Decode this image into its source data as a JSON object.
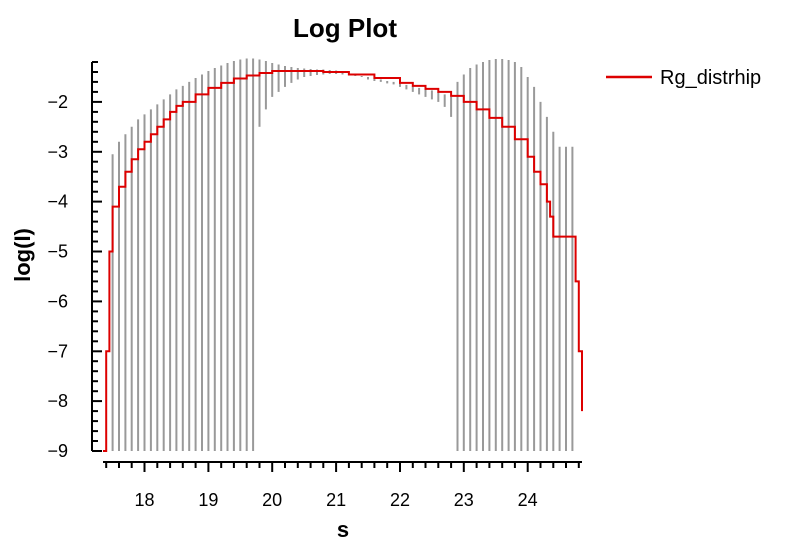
{
  "chart_data": {
    "type": "line",
    "title": "Log Plot",
    "xlabel": "s",
    "ylabel": "log(I)",
    "xlim": [
      17.35,
      24.85
    ],
    "ylim": [
      -9,
      -1.2
    ],
    "xticks": [
      18,
      19,
      20,
      21,
      22,
      23,
      24
    ],
    "xtick_labels": [
      "18",
      "19",
      "20",
      "21",
      "22",
      "23",
      "24"
    ],
    "yticks": [
      -9,
      -8,
      -7,
      -6,
      -5,
      -4,
      -3,
      -2
    ],
    "ytick_labels": [
      "−9",
      "−8",
      "−7",
      "−6",
      "−5",
      "−4",
      "−3",
      "−2"
    ],
    "grid": false,
    "legend_position": "top-right",
    "series": [
      {
        "name": "Rg_distrhip",
        "color": "#dd0000",
        "x": [
          17.35,
          17.4,
          17.45,
          17.5,
          17.6,
          17.7,
          17.8,
          17.9,
          18.0,
          18.1,
          18.2,
          18.3,
          18.4,
          18.5,
          18.6,
          18.8,
          19.0,
          19.2,
          19.4,
          19.6,
          19.8,
          20.0,
          20.4,
          20.8,
          21.2,
          21.6,
          22.0,
          22.2,
          22.4,
          22.6,
          22.8,
          23.0,
          23.2,
          23.4,
          23.6,
          23.8,
          24.0,
          24.1,
          24.2,
          24.3,
          24.35,
          24.4,
          24.5,
          24.6,
          24.7,
          24.75,
          24.8,
          24.85
        ],
        "y": [
          -9.0,
          -7.0,
          -5.0,
          -4.1,
          -3.7,
          -3.4,
          -3.15,
          -2.95,
          -2.8,
          -2.65,
          -2.5,
          -2.35,
          -2.2,
          -2.08,
          -2.0,
          -1.85,
          -1.72,
          -1.62,
          -1.53,
          -1.47,
          -1.42,
          -1.38,
          -1.38,
          -1.4,
          -1.45,
          -1.52,
          -1.62,
          -1.68,
          -1.74,
          -1.8,
          -1.88,
          -2.0,
          -2.15,
          -2.32,
          -2.5,
          -2.75,
          -3.1,
          -3.4,
          -3.65,
          -4.0,
          -4.3,
          -4.7,
          -4.7,
          -4.7,
          -4.7,
          -5.6,
          -7.0,
          -8.2
        ]
      }
    ],
    "error_bars": {
      "color": "#999999",
      "x": [
        17.5,
        17.6,
        17.7,
        17.8,
        17.9,
        18.0,
        18.1,
        18.2,
        18.3,
        18.4,
        18.5,
        18.6,
        18.7,
        18.8,
        18.9,
        19.0,
        19.1,
        19.2,
        19.3,
        19.4,
        19.5,
        19.6,
        19.7,
        19.8,
        19.9,
        20.0,
        20.1,
        20.2,
        20.3,
        20.4,
        20.5,
        20.6,
        20.7,
        20.8,
        20.9,
        21.0,
        21.1,
        21.2,
        21.3,
        21.4,
        21.5,
        21.6,
        21.7,
        21.8,
        21.9,
        22.0,
        22.1,
        22.2,
        22.3,
        22.4,
        22.5,
        22.6,
        22.7,
        22.8,
        22.9,
        23.0,
        23.1,
        23.2,
        23.3,
        23.4,
        23.5,
        23.6,
        23.7,
        23.8,
        23.9,
        24.0,
        24.1,
        24.2,
        24.3,
        24.4,
        24.5,
        24.6,
        24.7
      ],
      "upper": [
        -3.05,
        -2.8,
        -2.65,
        -2.5,
        -2.35,
        -2.25,
        -2.15,
        -2.05,
        -1.95,
        -1.85,
        -1.75,
        -1.68,
        -1.6,
        -1.52,
        -1.45,
        -1.38,
        -1.32,
        -1.27,
        -1.22,
        -1.18,
        -1.15,
        -1.13,
        -1.13,
        -1.15,
        -1.18,
        -1.22,
        -1.25,
        -1.28,
        -1.3,
        -1.32,
        -1.33,
        -1.34,
        -1.35,
        -1.35,
        -1.36,
        -1.37,
        -1.4,
        -1.43,
        -1.45,
        -1.48,
        -1.5,
        -1.53,
        -1.55,
        -1.58,
        -1.6,
        -1.63,
        -1.66,
        -1.69,
        -1.72,
        -1.75,
        -1.77,
        -1.8,
        -1.85,
        -1.9,
        -1.6,
        -1.45,
        -1.32,
        -1.25,
        -1.2,
        -1.16,
        -1.14,
        -1.14,
        -1.16,
        -1.2,
        -1.3,
        -1.5,
        -1.7,
        -2.0,
        -2.3,
        -2.6,
        -2.9,
        -2.9,
        -2.9
      ],
      "lower": [
        -9.0,
        -9.0,
        -9.0,
        -9.0,
        -9.0,
        -9.0,
        -9.0,
        -9.0,
        -9.0,
        -9.0,
        -9.0,
        -9.0,
        -9.0,
        -9.0,
        -9.0,
        -9.0,
        -9.0,
        -9.0,
        -9.0,
        -9.0,
        -9.0,
        -9.0,
        -9.0,
        -2.5,
        -2.15,
        -1.9,
        -1.8,
        -1.7,
        -1.62,
        -1.55,
        -1.5,
        -1.48,
        -1.46,
        -1.45,
        -1.44,
        -1.44,
        -1.45,
        -1.46,
        -1.48,
        -1.5,
        -1.55,
        -1.58,
        -1.6,
        -1.63,
        -1.65,
        -1.7,
        -1.75,
        -1.8,
        -1.85,
        -1.9,
        -1.95,
        -2.0,
        -2.1,
        -2.3,
        -9.0,
        -9.0,
        -9.0,
        -9.0,
        -9.0,
        -9.0,
        -9.0,
        -9.0,
        -9.0,
        -9.0,
        -9.0,
        -9.0,
        -9.0,
        -9.0,
        -9.0,
        -9.0,
        -9.0,
        -9.0,
        -9.0
      ]
    }
  }
}
